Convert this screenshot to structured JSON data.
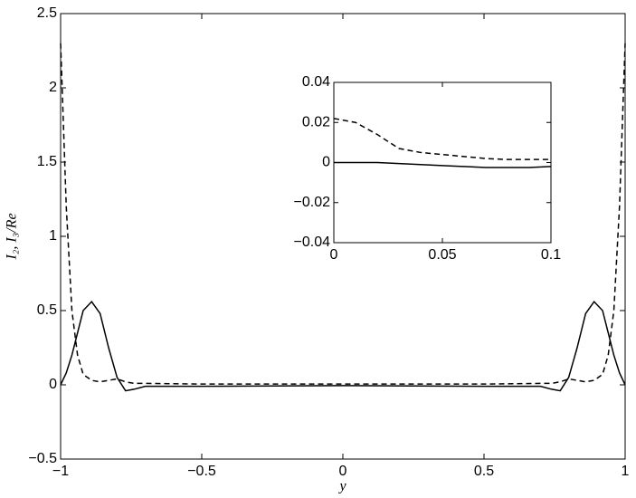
{
  "chart_data": [
    {
      "type": "line",
      "xlabel": "y",
      "ylabel": "I₂, I₃/Re",
      "x": [
        -1,
        -0.98,
        -0.96,
        -0.94,
        -0.92,
        -0.89,
        -0.86,
        -0.83,
        -0.8,
        -0.77,
        -0.74,
        -0.7,
        -0.5,
        0,
        0.5,
        0.7,
        0.74,
        0.77,
        0.8,
        0.83,
        0.86,
        0.89,
        0.92,
        0.94,
        0.96,
        0.98,
        1
      ],
      "series": [
        {
          "color": "#000000",
          "linestyle": "solid",
          "values": [
            0,
            0.08,
            0.2,
            0.35,
            0.5,
            0.56,
            0.48,
            0.25,
            0.05,
            -0.04,
            -0.03,
            -0.01,
            -0.01,
            -0.005,
            -0.01,
            -0.01,
            -0.03,
            -0.04,
            0.05,
            0.25,
            0.48,
            0.56,
            0.5,
            0.35,
            0.2,
            0.08,
            0
          ]
        },
        {
          "color": "#000000",
          "linestyle": "dashed",
          "values": [
            2.3,
            1.2,
            0.5,
            0.2,
            0.07,
            0.03,
            0.02,
            0.03,
            0.04,
            0.02,
            0.01,
            0.01,
            0.005,
            0.005,
            0.005,
            0.01,
            0.01,
            0.02,
            0.04,
            0.03,
            0.02,
            0.03,
            0.07,
            0.2,
            0.5,
            1.2,
            2.3
          ]
        }
      ],
      "xlim": [
        -1,
        1
      ],
      "ylim": [
        -0.5,
        2.5
      ],
      "xticks": [
        {
          "value": -1,
          "label": "−1"
        },
        {
          "value": -0.5,
          "label": "−0.5"
        },
        0,
        0.5,
        1
      ],
      "yticks": [
        {
          "value": -0.5,
          "label": "−0.5"
        },
        0,
        0.5,
        1,
        1.5,
        2,
        2.5
      ]
    },
    {
      "type": "line",
      "x": [
        0,
        0.01,
        0.02,
        0.03,
        0.04,
        0.05,
        0.06,
        0.07,
        0.08,
        0.09,
        0.1
      ],
      "series": [
        {
          "color": "#000000",
          "linestyle": "solid",
          "values": [
            0,
            0,
            0,
            -0.0005,
            -0.001,
            -0.0015,
            -0.002,
            -0.0025,
            -0.0025,
            -0.0025,
            -0.002
          ]
        },
        {
          "color": "#000000",
          "linestyle": "dashed",
          "values": [
            0.022,
            0.02,
            0.014,
            0.007,
            0.005,
            0.004,
            0.003,
            0.002,
            0.0015,
            0.0015,
            0.0015
          ]
        }
      ],
      "xlim": [
        0,
        0.1
      ],
      "ylim": [
        -0.04,
        0.04
      ],
      "xticks": [
        0,
        0.05,
        0.1
      ],
      "yticks": [
        {
          "value": -0.04,
          "label": "−0.04"
        },
        {
          "value": -0.02,
          "label": "−0.02"
        },
        0,
        0.02,
        0.04
      ]
    }
  ]
}
